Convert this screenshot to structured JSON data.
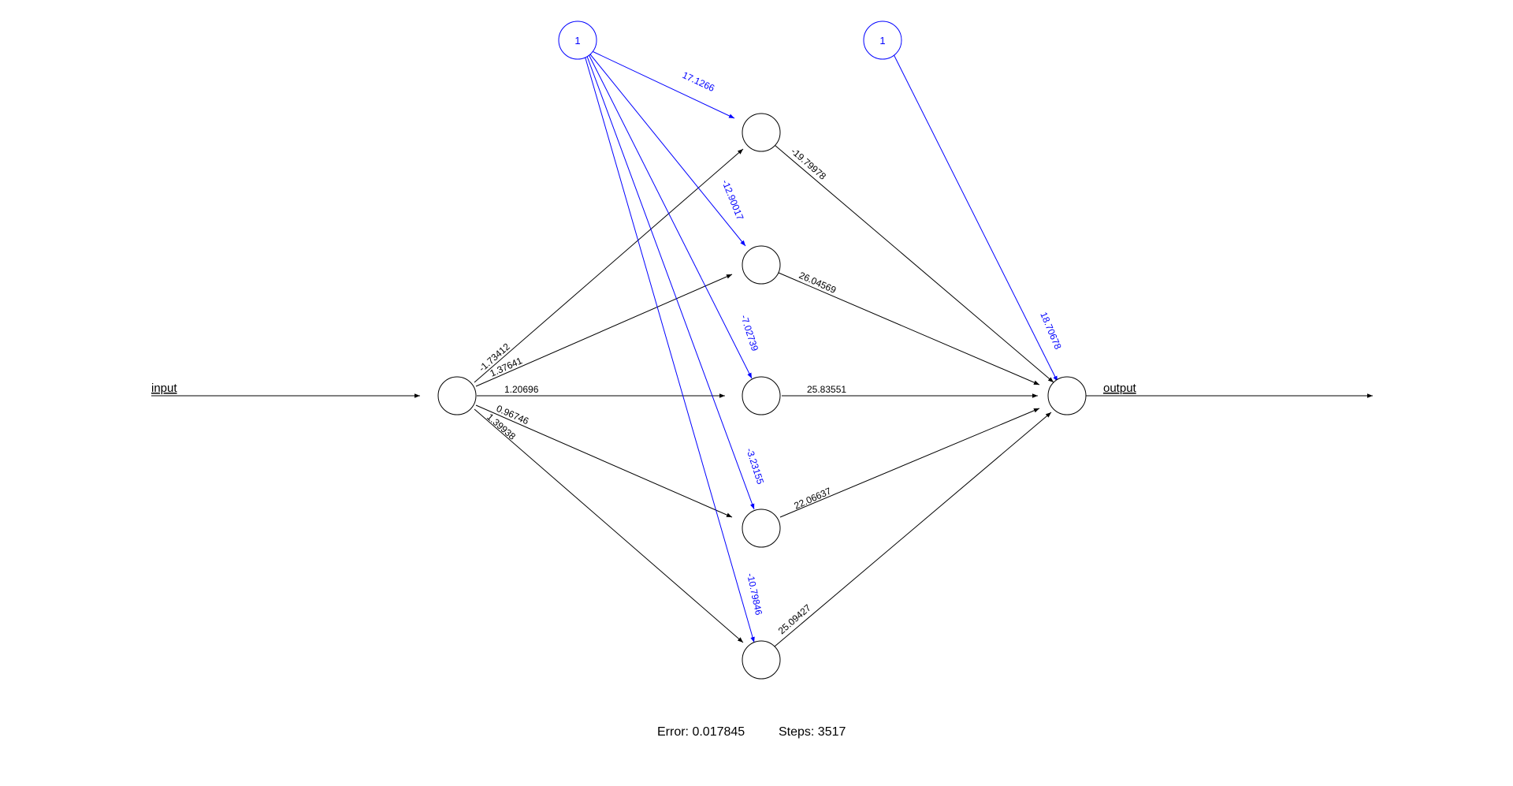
{
  "colors": {
    "weight": "#000000",
    "bias": "#0000ff",
    "background": "#ffffff"
  },
  "network": {
    "input_label": "input",
    "output_label": "output",
    "bias_label": "1",
    "input_to_hidden": [
      "-1.73412",
      "1.37641",
      "1.20696",
      "0.96746",
      "1.39938"
    ],
    "bias_to_hidden": [
      "17.1266",
      "-12.90017",
      "-7.02739",
      "-3.23155",
      "-10.79846"
    ],
    "hidden_to_output": [
      "-19.79978",
      "26.04569",
      "25.83551",
      "22.06637",
      "25.09427"
    ],
    "bias_to_output": "18.70678"
  },
  "footer": {
    "error_text": "Error: 0.017845",
    "steps_text": "Steps: 3517"
  }
}
